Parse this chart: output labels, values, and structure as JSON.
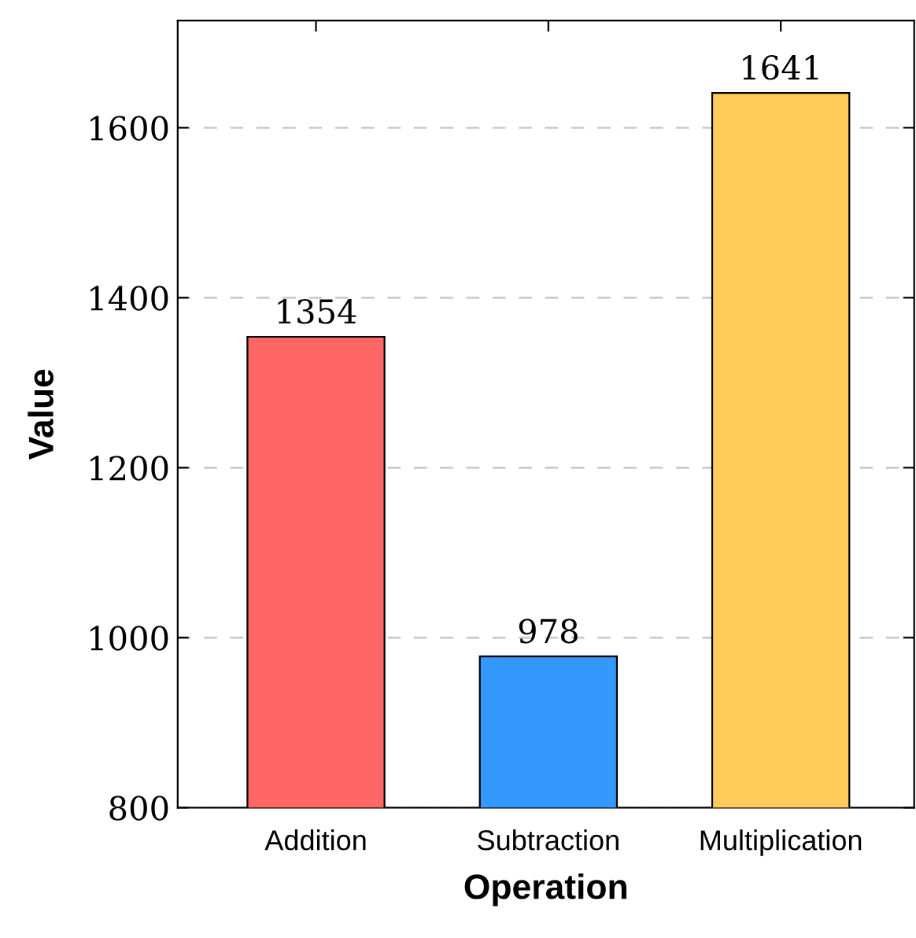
{
  "chart_data": {
    "type": "bar",
    "xlabel": "Operation",
    "ylabel": "Value",
    "categories": [
      "Addition",
      "Subtraction",
      "Multiplication"
    ],
    "values": [
      1354,
      978,
      1641
    ],
    "colors": [
      "#ff6666",
      "#3399ff",
      "#ffcc5c"
    ],
    "ylim": [
      800,
      1726
    ],
    "yticks": [
      800,
      1000,
      1200,
      1400,
      1600
    ],
    "grid": "y",
    "data_labels": true,
    "legend": false
  }
}
